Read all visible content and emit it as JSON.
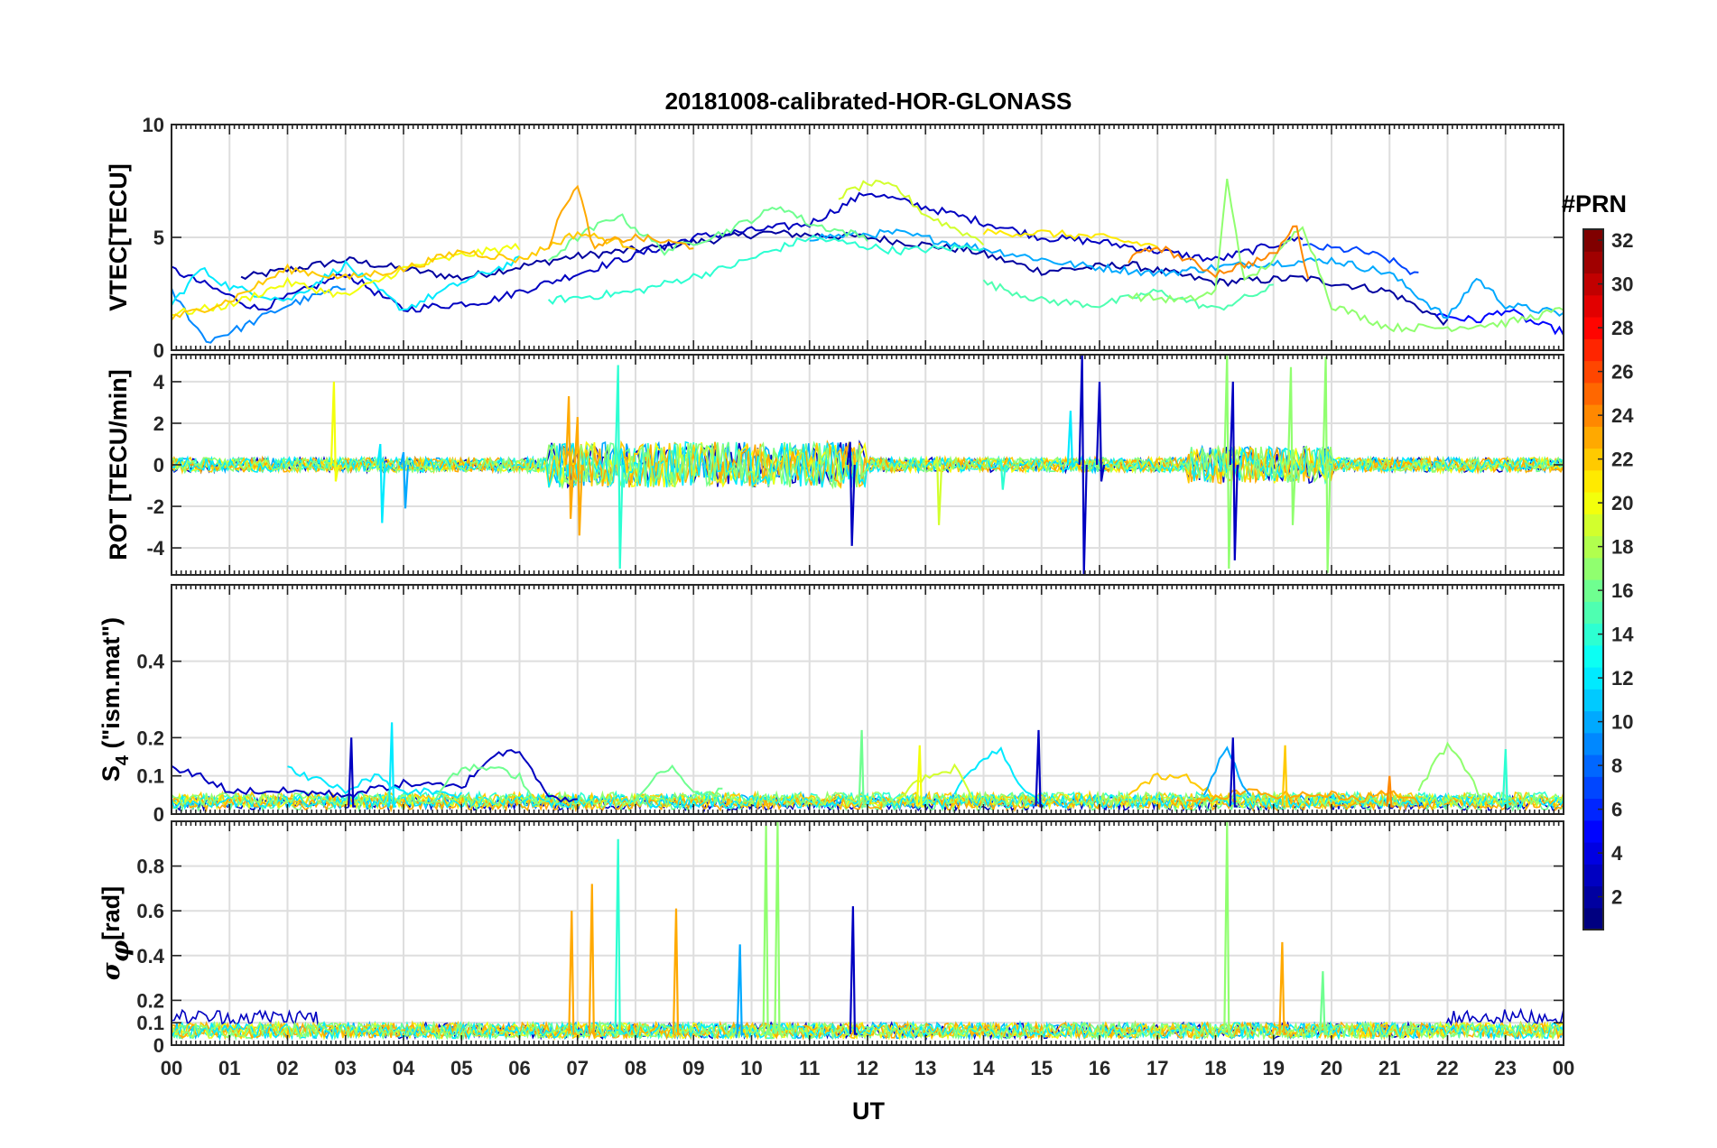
{
  "chart_data": {
    "type": "line",
    "title": "20181008-calibrated-HOR-GLONASS",
    "xlabel": "UT",
    "x_tick_labels": [
      "00",
      "01",
      "02",
      "03",
      "04",
      "05",
      "06",
      "07",
      "08",
      "09",
      "10",
      "11",
      "12",
      "13",
      "14",
      "15",
      "16",
      "17",
      "18",
      "19",
      "20",
      "21",
      "22",
      "23",
      "00"
    ],
    "xlim": [
      0,
      24
    ],
    "grid": true,
    "colorbar": {
      "title": "#PRN",
      "colormap": "jet",
      "range": [
        1,
        32
      ],
      "ticks": [
        2,
        4,
        6,
        8,
        10,
        12,
        14,
        16,
        18,
        20,
        22,
        24,
        26,
        28,
        30,
        32
      ],
      "tick_labels": [
        "2",
        "4",
        "6",
        "8",
        "10",
        "12",
        "14",
        "16",
        "18",
        "20",
        "22",
        "24",
        "26",
        "28",
        "30",
        "32"
      ],
      "placement": "right"
    },
    "panels": [
      {
        "id": "vtec",
        "ylabel": "VTEC[TECU]",
        "ylim": [
          0,
          10
        ],
        "yticks": [
          0,
          5,
          10
        ],
        "ytick_labels": [
          "0",
          "5",
          "10"
        ],
        "series": [
          {
            "prn": 2,
            "x": [
              1.2,
              3.0,
              5.0,
              6.8,
              8.5,
              10.2,
              12.0,
              13.8,
              15.0,
              16.5,
              18.0,
              19.5,
              21.0,
              22.0
            ],
            "y": [
              3.2,
              4.0,
              3.2,
              4.1,
              4.6,
              5.2,
              5.0,
              4.4,
              3.5,
              3.8,
              3.0,
              3.2,
              2.6,
              1.2
            ]
          },
          {
            "prn": 3,
            "x": [
              0.0,
              1.5,
              3.0,
              4.0,
              5.5,
              7.0,
              9.0,
              11.0,
              12.0,
              13.5,
              15.0,
              16.0,
              18.0,
              19.5
            ],
            "y": [
              3.6,
              1.8,
              3.4,
              1.8,
              2.2,
              3.4,
              5.0,
              5.6,
              7.0,
              6.0,
              5.0,
              4.8,
              4.0,
              5.0
            ]
          },
          {
            "prn": 5,
            "x": [
              21.8,
              22.5,
              23.0,
              23.5,
              24.0
            ],
            "y": [
              1.6,
              1.3,
              1.8,
              1.2,
              0.8
            ]
          },
          {
            "prn": 7,
            "x": [
              19.5,
              20.5,
              21.0,
              21.5
            ],
            "y": [
              4.6,
              4.4,
              4.0,
              3.3
            ]
          },
          {
            "prn": 9,
            "x": [
              0.0,
              0.6,
              1.2,
              2.0,
              3.0
            ],
            "y": [
              2.6,
              0.4,
              1.0,
              2.0,
              2.8
            ]
          },
          {
            "prn": 10,
            "x": [
              11.0,
              12.5,
              14.0,
              15.5,
              17.0,
              18.5,
              20.0,
              21.0,
              22.0,
              22.5,
              23.0,
              24.0
            ],
            "y": [
              5.0,
              5.2,
              4.5,
              3.8,
              3.4,
              3.8,
              4.0,
              3.4,
              1.4,
              3.2,
              2.0,
              1.6
            ]
          },
          {
            "prn": 12,
            "x": [
              0.0,
              0.5,
              1.0,
              2.0,
              3.0,
              4.0,
              5.0,
              6.0
            ],
            "y": [
              2.0,
              3.6,
              2.8,
              2.2,
              3.8,
              1.8,
              3.0,
              4.0
            ]
          },
          {
            "prn": 14,
            "x": [
              6.5,
              8.0,
              9.5,
              11.0,
              12.5,
              14.0
            ],
            "y": [
              2.2,
              2.6,
              3.6,
              5.0,
              4.4,
              4.6
            ]
          },
          {
            "prn": 15,
            "x": [
              14.0,
              15.0,
              16.0,
              17.0,
              18.0,
              19.0
            ],
            "y": [
              3.0,
              2.2,
              2.0,
              2.6,
              1.8,
              2.8
            ]
          },
          {
            "prn": 16,
            "x": [
              6.5,
              7.0,
              7.7,
              8.5,
              9.5,
              10.5,
              11.0,
              12.0
            ],
            "y": [
              4.0,
              5.0,
              6.0,
              4.4,
              5.2,
              6.4,
              5.6,
              5.0
            ]
          },
          {
            "prn": 17,
            "x": [
              16.5,
              17.5,
              18.0,
              18.2,
              18.5,
              19.0,
              19.5,
              20.0,
              21.0,
              22.0,
              23.0,
              24.0
            ],
            "y": [
              2.4,
              2.2,
              2.6,
              7.6,
              3.0,
              4.0,
              5.6,
              2.0,
              1.0,
              1.0,
              1.2,
              1.8
            ]
          },
          {
            "prn": 19,
            "x": [
              11.5,
              12.0,
              12.5,
              13.0,
              14.0
            ],
            "y": [
              6.8,
              7.4,
              7.2,
              6.0,
              4.8
            ]
          },
          {
            "prn": 20,
            "x": [
              0.0,
              1.0,
              2.0,
              3.0,
              4.0,
              5.0,
              6.0
            ],
            "y": [
              1.6,
              2.0,
              3.0,
              2.4,
              3.6,
              4.2,
              4.6
            ]
          },
          {
            "prn": 21,
            "x": [
              14.0,
              15.0,
              16.0,
              17.0
            ],
            "y": [
              5.2,
              5.2,
              5.0,
              4.6
            ]
          },
          {
            "prn": 22,
            "x": [
              0.0,
              1.0,
              2.0,
              3.0,
              4.0,
              5.0,
              6.0,
              7.0,
              8.0
            ],
            "y": [
              1.4,
              2.2,
              3.6,
              3.2,
              3.6,
              4.4,
              4.0,
              5.2,
              4.6
            ]
          },
          {
            "prn": 23,
            "x": [
              6.5,
              6.8,
              7.0,
              7.3,
              7.5,
              8.0,
              9.0
            ],
            "y": [
              4.6,
              6.6,
              7.2,
              4.4,
              4.8,
              5.0,
              4.6
            ]
          },
          {
            "prn": 24,
            "x": [
              16.5,
              17.0,
              18.0,
              19.0,
              19.4,
              19.6
            ],
            "y": [
              4.0,
              4.6,
              3.4,
              4.2,
              5.6,
              3.0
            ]
          }
        ]
      },
      {
        "id": "rot",
        "ylabel": "ROT [TECU/min]",
        "ylim": [
          -5.3,
          5.3
        ],
        "yticks": [
          -4,
          -2,
          0,
          2,
          4
        ],
        "ytick_labels": [
          "-4",
          "-2",
          "0",
          "2",
          "4"
        ],
        "spikes": [
          {
            "prn": 20,
            "x": 2.8,
            "top": 4.0,
            "bottom": -0.8
          },
          {
            "prn": 12,
            "x": 3.6,
            "top": 1.0,
            "bottom": -2.8
          },
          {
            "prn": 10,
            "x": 4.0,
            "top": 0.6,
            "bottom": -2.1
          },
          {
            "prn": 23,
            "x": 6.85,
            "top": 3.3,
            "bottom": -2.6
          },
          {
            "prn": 23,
            "x": 7.0,
            "top": 2.3,
            "bottom": -3.4
          },
          {
            "prn": 14,
            "x": 7.7,
            "top": 4.8,
            "bottom": -5.0
          },
          {
            "prn": 3,
            "x": 11.7,
            "top": 1.1,
            "bottom": -3.9
          },
          {
            "prn": 19,
            "x": 13.2,
            "top": 0.4,
            "bottom": -2.9
          },
          {
            "prn": 14,
            "x": 14.3,
            "top": 0.2,
            "bottom": -1.2
          },
          {
            "prn": 12,
            "x": 15.5,
            "top": 2.6,
            "bottom": -0.1
          },
          {
            "prn": 3,
            "x": 15.7,
            "top": 5.3,
            "bottom": -5.3
          },
          {
            "prn": 3,
            "x": 16.0,
            "top": 4.0,
            "bottom": -0.8
          },
          {
            "prn": 3,
            "x": 18.3,
            "top": 4.0,
            "bottom": -4.6
          },
          {
            "prn": 17,
            "x": 18.2,
            "top": 5.3,
            "bottom": -5.0
          },
          {
            "prn": 17,
            "x": 19.3,
            "top": 4.7,
            "bottom": -2.9
          },
          {
            "prn": 17,
            "x": 19.9,
            "top": 5.2,
            "bottom": -5.2
          }
        ]
      },
      {
        "id": "s4",
        "ylabel": "S4 (\"ism.mat\")",
        "ylabel_main": "S",
        "ylabel_sub": "4",
        "ylabel_rest": " (\"ism.mat\")",
        "ylim": [
          0,
          0.6
        ],
        "yticks": [
          0,
          0.1,
          0.2,
          0.4
        ],
        "ytick_labels": [
          "0",
          "0.1",
          "0.2",
          "0.4"
        ],
        "series": [
          {
            "prn": 3,
            "x": [
              0.0,
              0.5,
              1.0,
              2.0,
              3.0,
              4.0,
              5.0,
              5.5,
              6.0,
              6.5,
              7.0
            ],
            "y": [
              0.12,
              0.1,
              0.06,
              0.06,
              0.05,
              0.08,
              0.07,
              0.15,
              0.17,
              0.05,
              0.03
            ]
          },
          {
            "prn": 12,
            "x": [
              2.0,
              2.5,
              3.0,
              3.5,
              4.0,
              4.5,
              5.0
            ],
            "y": [
              0.12,
              0.09,
              0.06,
              0.1,
              0.06,
              0.06,
              0.05
            ]
          },
          {
            "prn": 12,
            "x": [
              13.5,
              14.0,
              14.3,
              14.6,
              15.0
            ],
            "y": [
              0.06,
              0.15,
              0.17,
              0.08,
              0.03
            ]
          },
          {
            "prn": 16,
            "x": [
              4.5,
              5.0,
              5.5,
              6.0,
              6.3
            ],
            "y": [
              0.04,
              0.12,
              0.12,
              0.1,
              0.03
            ]
          },
          {
            "prn": 16,
            "x": [
              8.0,
              8.3,
              8.7,
              9.0,
              9.5
            ],
            "y": [
              0.03,
              0.1,
              0.12,
              0.05,
              0.06
            ]
          },
          {
            "prn": 17,
            "x": [
              21.5,
              21.8,
              22.0,
              22.3,
              22.6
            ],
            "y": [
              0.06,
              0.14,
              0.18,
              0.12,
              0.04
            ]
          },
          {
            "prn": 22,
            "x": [
              16.5,
              17.0,
              17.5,
              18.0
            ],
            "y": [
              0.05,
              0.1,
              0.1,
              0.05
            ]
          },
          {
            "prn": 23,
            "x": [
              17.5,
              18.0,
              18.5,
              19.0,
              19.5,
              20.0,
              20.5,
              21.0,
              21.5
            ],
            "y": [
              0.03,
              0.04,
              0.06,
              0.05,
              0.05,
              0.05,
              0.04,
              0.06,
              0.03
            ]
          },
          {
            "prn": 10,
            "x": [
              17.8,
              18.0,
              18.2,
              18.4,
              18.6
            ],
            "y": [
              0.04,
              0.12,
              0.18,
              0.1,
              0.05
            ]
          },
          {
            "prn": 19,
            "x": [
              12.5,
              13.0,
              13.5,
              13.8
            ],
            "y": [
              0.04,
              0.1,
              0.12,
              0.05
            ]
          }
        ],
        "spikes": [
          {
            "prn": 3,
            "x": 3.1,
            "top": 0.2
          },
          {
            "prn": 12,
            "x": 3.8,
            "top": 0.24
          },
          {
            "prn": 16,
            "x": 11.9,
            "top": 0.22
          },
          {
            "prn": 20,
            "x": 12.9,
            "top": 0.18
          },
          {
            "prn": 3,
            "x": 14.95,
            "top": 0.22
          },
          {
            "prn": 3,
            "x": 18.3,
            "top": 0.2
          },
          {
            "prn": 22,
            "x": 19.2,
            "top": 0.18
          },
          {
            "prn": 24,
            "x": 21.0,
            "top": 0.1
          },
          {
            "prn": 14,
            "x": 23.0,
            "top": 0.17
          }
        ]
      },
      {
        "id": "sigma_phi",
        "ylabel": "σφ[rad]",
        "ylabel_main": "σ",
        "ylabel_sub": "φ",
        "ylabel_rest": "[rad]",
        "ylim": [
          0,
          1.0
        ],
        "yticks": [
          0,
          0.1,
          0.2,
          0.4,
          0.6,
          0.8
        ],
        "ytick_labels": [
          "0",
          "0.1",
          "0.2",
          "0.4",
          "0.6",
          "0.8"
        ],
        "spikes": [
          {
            "prn": 23,
            "x": 6.9,
            "top": 0.6
          },
          {
            "prn": 23,
            "x": 7.25,
            "top": 0.72
          },
          {
            "prn": 14,
            "x": 7.7,
            "top": 0.92
          },
          {
            "prn": 23,
            "x": 8.7,
            "top": 0.61
          },
          {
            "prn": 10,
            "x": 9.8,
            "top": 0.45
          },
          {
            "prn": 17,
            "x": 10.25,
            "top": 0.98
          },
          {
            "prn": 17,
            "x": 10.45,
            "top": 1.0
          },
          {
            "prn": 3,
            "x": 11.75,
            "top": 0.62
          },
          {
            "prn": 17,
            "x": 18.2,
            "top": 1.0
          },
          {
            "prn": 23,
            "x": 19.15,
            "top": 0.46
          },
          {
            "prn": 16,
            "x": 19.85,
            "top": 0.33
          }
        ]
      }
    ]
  }
}
